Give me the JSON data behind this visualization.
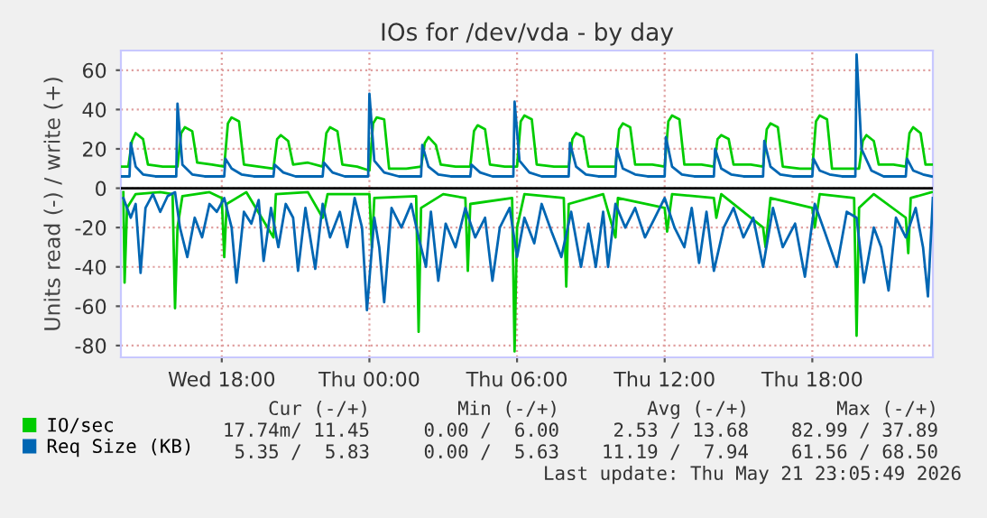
{
  "chart_data": {
    "type": "line",
    "title": "IOs for /dev/vda - by day",
    "ylabel": "Units read (-) / write (+)",
    "xlim": [
      "2026-05-20T13:54",
      "2026-05-21T22:54"
    ],
    "xticks": [
      {
        "value": "2026-05-20T18:00",
        "label": "Wed 18:00"
      },
      {
        "value": "2026-05-21T00:00",
        "label": "Thu 00:00"
      },
      {
        "value": "2026-05-21T06:00",
        "label": "Thu 06:00"
      },
      {
        "value": "2026-05-21T12:00",
        "label": "Thu 12:00"
      },
      {
        "value": "2026-05-21T18:00",
        "label": "Thu 18:00"
      }
    ],
    "ylim": [
      -86,
      70
    ],
    "yticks": [
      -80,
      -60,
      -40,
      -20,
      0,
      20,
      40,
      60
    ],
    "grid": true,
    "legend": "bottom left",
    "line_style": "solid",
    "marker": "none",
    "ref_lines": [
      {
        "axis": "y",
        "value": 0,
        "color": "#000000"
      }
    ],
    "series": [
      {
        "name": "IO/sec",
        "color": "#00cc00",
        "x": [
          "2026-05-20T13:54",
          "2026-05-20T14:12",
          "2026-05-20T14:21",
          "2026-05-20T14:30",
          "2026-05-20T14:48",
          "2026-05-20T15:00",
          "2026-05-20T15:36",
          "2026-05-20T16:12",
          "2026-05-20T16:21",
          "2026-05-20T16:30",
          "2026-05-20T16:48",
          "2026-05-20T17:00",
          "2026-05-20T17:36",
          "2026-05-20T18:06",
          "2026-05-20T18:15",
          "2026-05-20T18:24",
          "2026-05-20T18:42",
          "2026-05-20T18:54",
          "2026-05-20T19:30",
          "2026-05-20T20:06",
          "2026-05-20T20:15",
          "2026-05-20T20:24",
          "2026-05-20T20:42",
          "2026-05-20T20:54",
          "2026-05-20T21:30",
          "2026-05-20T22:06",
          "2026-05-20T22:15",
          "2026-05-20T22:24",
          "2026-05-20T22:42",
          "2026-05-20T22:54",
          "2026-05-20T23:30",
          "2026-05-21T00:00",
          "2026-05-21T00:09",
          "2026-05-21T00:18",
          "2026-05-21T00:36",
          "2026-05-21T00:48",
          "2026-05-21T01:30",
          "2026-05-21T02:06",
          "2026-05-21T02:15",
          "2026-05-21T02:24",
          "2026-05-21T02:42",
          "2026-05-21T02:54",
          "2026-05-21T03:30",
          "2026-05-21T04:06",
          "2026-05-21T04:15",
          "2026-05-21T04:24",
          "2026-05-21T04:42",
          "2026-05-21T04:54",
          "2026-05-21T05:30",
          "2026-05-21T06:00",
          "2026-05-21T06:09",
          "2026-05-21T06:18",
          "2026-05-21T06:36",
          "2026-05-21T06:48",
          "2026-05-21T07:30",
          "2026-05-21T08:06",
          "2026-05-21T08:15",
          "2026-05-21T08:24",
          "2026-05-21T08:42",
          "2026-05-21T08:54",
          "2026-05-21T09:30",
          "2026-05-21T10:00",
          "2026-05-21T10:09",
          "2026-05-21T10:18",
          "2026-05-21T10:36",
          "2026-05-21T10:48",
          "2026-05-21T11:30",
          "2026-05-21T12:00",
          "2026-05-21T12:09",
          "2026-05-21T12:18",
          "2026-05-21T12:36",
          "2026-05-21T12:48",
          "2026-05-21T13:30",
          "2026-05-21T14:00",
          "2026-05-21T14:09",
          "2026-05-21T14:18",
          "2026-05-21T14:36",
          "2026-05-21T14:48",
          "2026-05-21T15:30",
          "2026-05-21T16:00",
          "2026-05-21T16:09",
          "2026-05-21T16:18",
          "2026-05-21T16:36",
          "2026-05-21T16:48",
          "2026-05-21T17:30",
          "2026-05-21T18:00",
          "2026-05-21T18:09",
          "2026-05-21T18:18",
          "2026-05-21T18:36",
          "2026-05-21T18:48",
          "2026-05-21T19:30",
          "2026-05-21T19:54",
          "2026-05-21T20:03",
          "2026-05-21T20:12",
          "2026-05-21T20:30",
          "2026-05-21T20:42",
          "2026-05-21T21:18",
          "2026-05-21T21:48",
          "2026-05-21T21:57",
          "2026-05-21T22:06",
          "2026-05-21T22:24",
          "2026-05-21T22:36",
          "2026-05-21T22:51"
        ],
        "values": [
          11,
          11,
          24,
          28,
          25,
          12,
          11,
          11,
          28,
          31,
          29,
          13,
          12,
          11,
          33,
          36,
          34,
          12,
          11,
          10,
          25,
          27,
          24,
          12,
          13,
          11,
          28,
          31,
          29,
          12,
          11,
          9,
          33,
          36,
          35,
          10,
          10,
          11,
          23,
          26,
          22,
          12,
          11,
          11,
          29,
          32,
          30,
          12,
          11,
          11,
          34,
          37,
          35,
          12,
          11,
          11,
          25,
          28,
          26,
          11,
          11,
          11,
          30,
          33,
          31,
          12,
          12,
          11,
          34,
          37,
          35,
          12,
          12,
          11,
          25,
          27,
          25,
          12,
          12,
          11,
          30,
          33,
          31,
          11,
          10,
          10,
          34,
          37,
          35,
          10,
          10,
          10,
          24,
          27,
          24,
          12,
          12,
          11,
          28,
          31,
          28,
          12,
          12
        ]
      },
      {
        "name": "Req Size (KB)",
        "color": "#0066b3",
        "x": [
          "2026-05-20T13:54",
          "2026-05-20T14:15",
          "2026-05-20T14:18",
          "2026-05-20T14:30",
          "2026-05-20T14:48",
          "2026-05-20T15:18",
          "2026-05-20T16:09",
          "2026-05-20T16:12",
          "2026-05-20T16:24",
          "2026-05-20T16:48",
          "2026-05-20T17:18",
          "2026-05-20T18:06",
          "2026-05-20T18:09",
          "2026-05-20T18:24",
          "2026-05-20T18:48",
          "2026-05-20T19:18",
          "2026-05-20T20:06",
          "2026-05-20T20:09",
          "2026-05-20T20:30",
          "2026-05-20T21:00",
          "2026-05-20T22:06",
          "2026-05-20T22:09",
          "2026-05-20T22:30",
          "2026-05-20T23:00",
          "2026-05-20T23:57",
          "2026-05-21T00:00",
          "2026-05-21T00:12",
          "2026-05-21T00:36",
          "2026-05-21T01:12",
          "2026-05-21T02:06",
          "2026-05-21T02:09",
          "2026-05-21T02:24",
          "2026-05-21T02:48",
          "2026-05-21T03:18",
          "2026-05-21T04:06",
          "2026-05-21T04:09",
          "2026-05-21T04:30",
          "2026-05-21T05:00",
          "2026-05-21T05:51",
          "2026-05-21T05:54",
          "2026-05-21T06:06",
          "2026-05-21T06:30",
          "2026-05-21T07:00",
          "2026-05-21T08:06",
          "2026-05-21T08:09",
          "2026-05-21T08:24",
          "2026-05-21T08:48",
          "2026-05-21T09:18",
          "2026-05-21T10:00",
          "2026-05-21T10:03",
          "2026-05-21T10:18",
          "2026-05-21T10:48",
          "2026-05-21T11:18",
          "2026-05-21T12:00",
          "2026-05-21T12:03",
          "2026-05-21T12:18",
          "2026-05-21T12:42",
          "2026-05-21T13:12",
          "2026-05-21T14:00",
          "2026-05-21T14:03",
          "2026-05-21T14:18",
          "2026-05-21T14:42",
          "2026-05-21T15:12",
          "2026-05-21T16:00",
          "2026-05-21T16:03",
          "2026-05-21T16:18",
          "2026-05-21T16:42",
          "2026-05-21T17:12",
          "2026-05-21T18:00",
          "2026-05-21T18:03",
          "2026-05-21T18:18",
          "2026-05-21T18:42",
          "2026-05-21T19:12",
          "2026-05-21T19:45",
          "2026-05-21T19:48",
          "2026-05-21T20:00",
          "2026-05-21T20:24",
          "2026-05-21T20:54",
          "2026-05-21T21:48",
          "2026-05-21T21:51",
          "2026-05-21T22:06",
          "2026-05-21T22:30",
          "2026-05-21T22:51"
        ],
        "values": [
          6,
          6,
          23,
          11,
          7,
          6,
          6,
          43,
          12,
          7,
          6,
          6,
          15,
          10,
          7,
          6,
          6,
          12,
          8,
          6,
          6,
          13,
          8,
          6,
          6,
          48,
          14,
          8,
          6,
          6,
          22,
          11,
          7,
          6,
          6,
          12,
          8,
          6,
          6,
          44,
          14,
          8,
          6,
          6,
          23,
          11,
          7,
          6,
          6,
          20,
          10,
          7,
          6,
          6,
          26,
          11,
          7,
          6,
          6,
          20,
          10,
          7,
          6,
          6,
          24,
          11,
          7,
          6,
          6,
          15,
          9,
          7,
          6,
          6,
          68,
          20,
          9,
          6,
          6,
          15,
          9,
          7,
          6
        ]
      },
      {
        "color": "#00cc00",
        "x": [
          "2026-05-20T14:00",
          "2026-05-20T14:03",
          "2026-05-20T14:09",
          "2026-05-20T14:30",
          "2026-05-20T15:30",
          "2026-05-20T16:00",
          "2026-05-20T16:06",
          "2026-05-20T16:12",
          "2026-05-20T16:24",
          "2026-05-20T17:30",
          "2026-05-20T18:00",
          "2026-05-20T18:06",
          "2026-05-20T18:12",
          "2026-05-20T19:00",
          "2026-05-20T20:06",
          "2026-05-20T20:12",
          "2026-05-20T21:30",
          "2026-05-20T22:06",
          "2026-05-20T22:18",
          "2026-05-21T00:00",
          "2026-05-21T00:06",
          "2026-05-21T00:12",
          "2026-05-21T01:54",
          "2026-05-21T02:00",
          "2026-05-21T02:06",
          "2026-05-21T03:00",
          "2026-05-21T03:54",
          "2026-05-21T04:00",
          "2026-05-21T04:06",
          "2026-05-21T05:48",
          "2026-05-21T05:54",
          "2026-05-21T06:00",
          "2026-05-21T06:18",
          "2026-05-21T07:54",
          "2026-05-21T08:00",
          "2026-05-21T08:06",
          "2026-05-21T09:30",
          "2026-05-21T10:00",
          "2026-05-21T10:06",
          "2026-05-21T12:00",
          "2026-05-21T12:06",
          "2026-05-21T12:18",
          "2026-05-21T14:00",
          "2026-05-21T14:06",
          "2026-05-21T14:18",
          "2026-05-21T16:00",
          "2026-05-21T16:06",
          "2026-05-21T16:18",
          "2026-05-21T18:00",
          "2026-05-21T18:06",
          "2026-05-21T18:18",
          "2026-05-21T19:42",
          "2026-05-21T19:48",
          "2026-05-21T19:54",
          "2026-05-21T20:30",
          "2026-05-21T21:48",
          "2026-05-21T21:54",
          "2026-05-21T22:00",
          "2026-05-21T22:51"
        ],
        "values": [
          -2,
          -48,
          -10,
          -3,
          -2,
          -3,
          -61,
          -20,
          -4,
          -2,
          -5,
          -35,
          -8,
          -2,
          -25,
          -3,
          -2,
          -15,
          -3,
          -3,
          -30,
          -5,
          -4,
          -73,
          -10,
          -3,
          -5,
          -42,
          -8,
          -5,
          -83,
          -20,
          -3,
          -5,
          -50,
          -8,
          -3,
          -25,
          -5,
          -10,
          -22,
          -3,
          -5,
          -15,
          -3,
          -20,
          -30,
          -5,
          -10,
          -20,
          -3,
          -5,
          -75,
          -10,
          -3,
          -15,
          -33,
          -5,
          -2
        ]
      },
      {
        "color": "#0066b3",
        "x": [
          "2026-05-20T14:00",
          "2026-05-20T14:18",
          "2026-05-20T14:30",
          "2026-05-20T14:42",
          "2026-05-20T14:54",
          "2026-05-20T15:12",
          "2026-05-20T15:30",
          "2026-05-20T15:48",
          "2026-05-20T16:06",
          "2026-05-20T16:18",
          "2026-05-20T16:36",
          "2026-05-20T16:54",
          "2026-05-20T17:12",
          "2026-05-20T17:30",
          "2026-05-20T17:48",
          "2026-05-20T18:06",
          "2026-05-20T18:24",
          "2026-05-20T18:36",
          "2026-05-20T18:54",
          "2026-05-20T19:12",
          "2026-05-20T19:30",
          "2026-05-20T19:42",
          "2026-05-20T20:00",
          "2026-05-20T20:18",
          "2026-05-20T20:36",
          "2026-05-20T20:54",
          "2026-05-20T21:06",
          "2026-05-20T21:24",
          "2026-05-20T21:48",
          "2026-05-20T22:06",
          "2026-05-20T22:24",
          "2026-05-20T22:48",
          "2026-05-20T23:06",
          "2026-05-20T23:24",
          "2026-05-20T23:42",
          "2026-05-20T23:54",
          "2026-05-21T00:12",
          "2026-05-21T00:24",
          "2026-05-21T00:36",
          "2026-05-21T00:54",
          "2026-05-21T01:18",
          "2026-05-21T01:42",
          "2026-05-21T02:00",
          "2026-05-21T02:18",
          "2026-05-21T02:30",
          "2026-05-21T02:48",
          "2026-05-21T03:06",
          "2026-05-21T03:30",
          "2026-05-21T03:54",
          "2026-05-21T04:18",
          "2026-05-21T04:42",
          "2026-05-21T05:00",
          "2026-05-21T05:18",
          "2026-05-21T05:42",
          "2026-05-21T06:00",
          "2026-05-21T06:18",
          "2026-05-21T06:42",
          "2026-05-21T07:00",
          "2026-05-21T07:24",
          "2026-05-21T07:48",
          "2026-05-21T08:12",
          "2026-05-21T08:36",
          "2026-05-21T08:54",
          "2026-05-21T09:12",
          "2026-05-21T09:30",
          "2026-05-21T09:42",
          "2026-05-21T10:00",
          "2026-05-21T10:24",
          "2026-05-21T10:48",
          "2026-05-21T11:12",
          "2026-05-21T11:36",
          "2026-05-21T12:00",
          "2026-05-21T12:24",
          "2026-05-21T12:48",
          "2026-05-21T13:06",
          "2026-05-21T13:24",
          "2026-05-21T13:42",
          "2026-05-21T14:00",
          "2026-05-21T14:24",
          "2026-05-21T14:48",
          "2026-05-21T15:12",
          "2026-05-21T15:36",
          "2026-05-21T16:00",
          "2026-05-21T16:24",
          "2026-05-21T16:48",
          "2026-05-21T17:18",
          "2026-05-21T17:42",
          "2026-05-21T18:06",
          "2026-05-21T18:30",
          "2026-05-21T19:00",
          "2026-05-21T19:24",
          "2026-05-21T19:48",
          "2026-05-21T20:06",
          "2026-05-21T20:30",
          "2026-05-21T20:48",
          "2026-05-21T21:06",
          "2026-05-21T21:24",
          "2026-05-21T21:48",
          "2026-05-21T22:12",
          "2026-05-21T22:30",
          "2026-05-21T22:42",
          "2026-05-21T22:54"
        ],
        "values": [
          -5,
          -15,
          -8,
          -43,
          -10,
          -3,
          -12,
          -4,
          -2,
          -20,
          -35,
          -15,
          -25,
          -8,
          -12,
          -5,
          -20,
          -48,
          -12,
          -18,
          -6,
          -37,
          -10,
          -30,
          -8,
          -15,
          -42,
          -10,
          -41,
          -8,
          -25,
          -12,
          -30,
          -5,
          -20,
          -62,
          -15,
          -30,
          -58,
          -10,
          -20,
          -8,
          -25,
          -40,
          -12,
          -47,
          -18,
          -30,
          -10,
          -25,
          -15,
          -47,
          -20,
          -10,
          -35,
          -15,
          -28,
          -8,
          -22,
          -35,
          -12,
          -40,
          -18,
          -40,
          -12,
          -40,
          -8,
          -20,
          -10,
          -25,
          -15,
          -5,
          -20,
          -30,
          -10,
          -38,
          -12,
          -42,
          -20,
          -10,
          -25,
          -15,
          -40,
          -10,
          -30,
          -18,
          -45,
          -8,
          -22,
          -40,
          -12,
          -15,
          -48,
          -20,
          -30,
          -52,
          -15,
          -25,
          -10,
          -30,
          -55,
          -5
        ]
      }
    ],
    "annotations": [
      "Cur (-/+)",
      "Min (-/+)",
      "Avg (-/+)",
      "Max (-/+)",
      "17.74m/ 11.45",
      "0.00 /  6.00",
      "2.53 / 13.68",
      "82.99 / 37.89",
      "5.35 /  5.83",
      "0.00 /  5.63",
      "11.19 /  7.94",
      "61.56 / 68.50",
      "Last update: Thu May 21 23:05:49 2026"
    ]
  }
}
